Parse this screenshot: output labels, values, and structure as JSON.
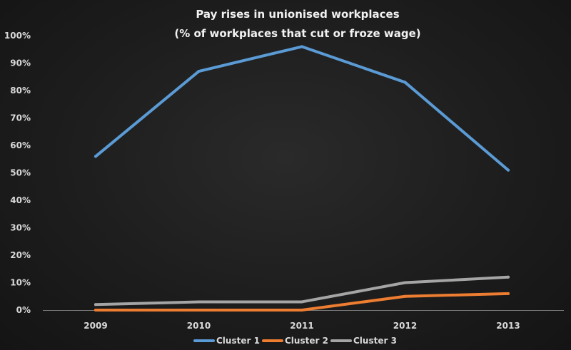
{
  "chart_data": {
    "type": "line",
    "title": "Pay rises in unionised workplaces",
    "subtitle": "(% of workplaces that cut or froze wage)",
    "xlabel": "",
    "ylabel": "",
    "categories": [
      "2009",
      "2010",
      "2011",
      "2012",
      "2013"
    ],
    "y_ticks": [
      "0%",
      "10%",
      "20%",
      "30%",
      "40%",
      "50%",
      "60%",
      "70%",
      "80%",
      "90%",
      "100%"
    ],
    "ylim": [
      0,
      100
    ],
    "grid": false,
    "legend_position": "bottom",
    "series": [
      {
        "name": "Cluster 1",
        "color": "#5b9bd5",
        "values": [
          56,
          87,
          96,
          83,
          51
        ]
      },
      {
        "name": "Cluster 2",
        "color": "#ed7d31",
        "values": [
          0,
          0,
          0,
          5,
          6
        ]
      },
      {
        "name": "Cluster 3",
        "color": "#a5a5a5",
        "values": [
          2,
          3,
          3,
          10,
          12
        ]
      }
    ]
  }
}
